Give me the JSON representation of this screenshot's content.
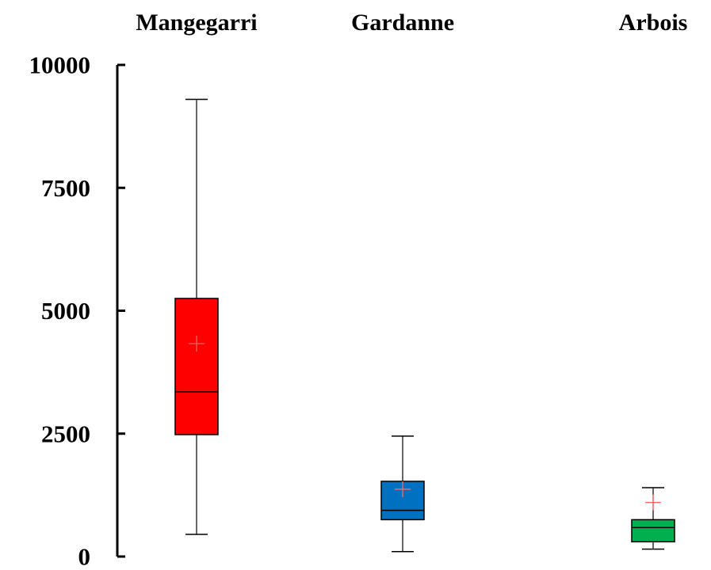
{
  "chart_data": {
    "type": "box",
    "categories": [
      "Mangegarri",
      "Gardanne",
      "Arbois"
    ],
    "series": [
      {
        "category": "Mangegarri",
        "min": 450,
        "q1": 2480,
        "median": 3350,
        "q3": 5250,
        "max": 9300,
        "mean": 4330,
        "color": "#ff0000"
      },
      {
        "category": "Gardanne",
        "min": 100,
        "q1": 750,
        "median": 940,
        "q3": 1530,
        "max": 2450,
        "mean": 1370,
        "color": "#0070c0"
      },
      {
        "category": "Arbois",
        "min": 150,
        "q1": 300,
        "median": 590,
        "q3": 750,
        "max": 1400,
        "mean": 1100,
        "color": "#00b050"
      }
    ],
    "ylim": [
      0,
      10000
    ],
    "yticks": [
      0,
      2500,
      5000,
      7500,
      10000
    ],
    "ytick_labels": [
      "0",
      "2500",
      "5000",
      "7500",
      "10000"
    ],
    "mean_marker_color": "#ff6666",
    "grid": false,
    "title": "",
    "xlabel": "",
    "ylabel": ""
  }
}
